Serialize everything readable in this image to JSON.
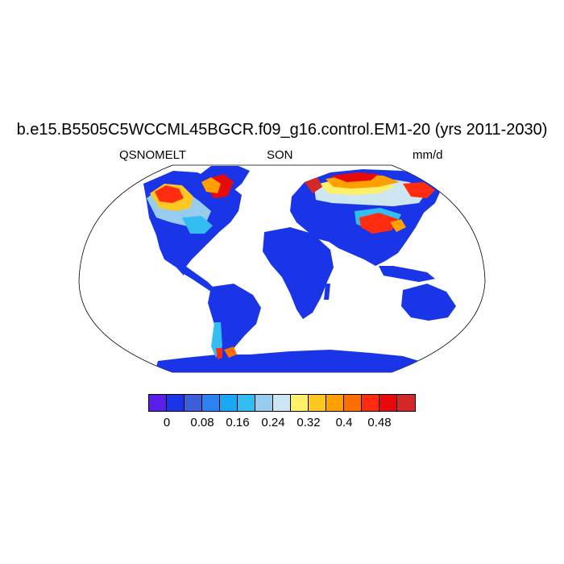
{
  "title": "b.e15.B5505C5WCCML45BGCR.f09_g16.control.EM1-20 (yrs 2011-2030)",
  "left_label": "QSNOMELT",
  "center_label": "SON",
  "right_label": "mm/d",
  "projection": "Robinson",
  "map": {
    "ocean_color": "#ffffff",
    "land_base_color": "#1a35e8",
    "regions": [
      {
        "name": "north-america",
        "value_range": "0 – >0.48",
        "note": "high melt over Canada, Alaska, Greenland margins"
      },
      {
        "name": "eurasia-north",
        "value_range": "0.24 – >0.48",
        "note": "high melt across Scandinavia, Russia, Siberia"
      },
      {
        "name": "tibetan-plateau",
        "value_range": ">0.48"
      },
      {
        "name": "greenland",
        "value_range": "0 – >0.48"
      },
      {
        "name": "southern-andes",
        "value_range": "0.08 – 0.4"
      },
      {
        "name": "antarctica",
        "value_range": "0"
      },
      {
        "name": "tropics-and-southern-continents",
        "value_range": "0"
      }
    ]
  },
  "colorbar": {
    "colors": [
      "#5a1ee6",
      "#1a35e8",
      "#3c5ed8",
      "#2c82f0",
      "#1aa8f5",
      "#33bdf0",
      "#96cdee",
      "#cde6f2",
      "#fff06a",
      "#ffc820",
      "#ffa000",
      "#ff6e00",
      "#ff2c10",
      "#e60a0a",
      "#d22828"
    ],
    "labels": [
      "0",
      "0.08",
      "0.16",
      "0.24",
      "0.32",
      "0.4",
      "0.48"
    ],
    "label_boundaries": [
      1,
      3,
      5,
      7,
      9,
      11,
      13
    ]
  }
}
